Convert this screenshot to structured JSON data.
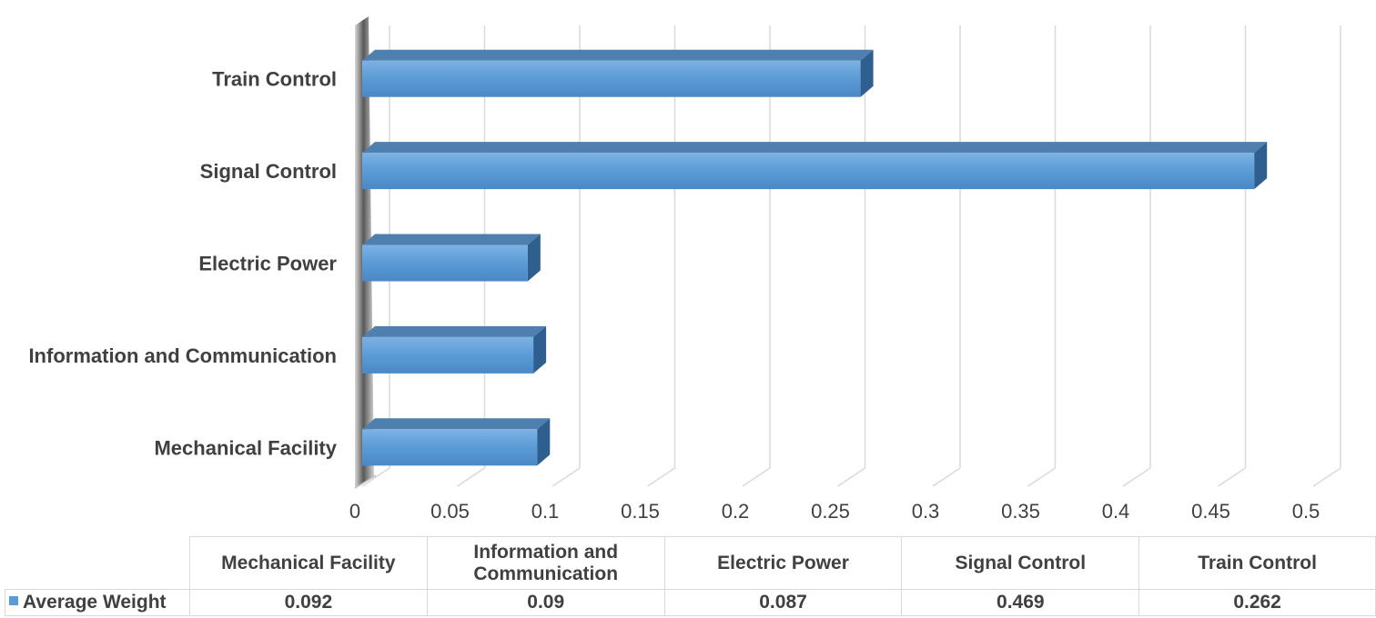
{
  "chart_data": {
    "type": "bar",
    "orientation": "horizontal",
    "style": "3d",
    "categories": [
      "Mechanical Facility",
      "Information and Communication",
      "Electric Power",
      "Signal Control",
      "Train Control"
    ],
    "table_headers": [
      "Mechanical Facility",
      "Information and Communication",
      "Electric Power",
      "Signal Control",
      "Train Control"
    ],
    "series": [
      {
        "name": "Average Weight",
        "values": [
          0.092,
          0.09,
          0.087,
          0.469,
          0.262
        ],
        "value_labels": [
          "0.092",
          "0.09",
          "0.087",
          "0.469",
          "0.262"
        ],
        "color": "#5b9bd5"
      }
    ],
    "xlim": [
      0,
      0.5
    ],
    "ticks": [
      0,
      0.05,
      0.1,
      0.15,
      0.2,
      0.25,
      0.3,
      0.35,
      0.4,
      0.45,
      0.5
    ],
    "tick_labels": [
      "0",
      "0.05",
      "0.1",
      "0.15",
      "0.2",
      "0.25",
      "0.3",
      "0.35",
      "0.4",
      "0.45",
      "0.5"
    ],
    "grid": true,
    "legend": "data-table-row",
    "title": "",
    "xlabel": "",
    "ylabel": ""
  }
}
